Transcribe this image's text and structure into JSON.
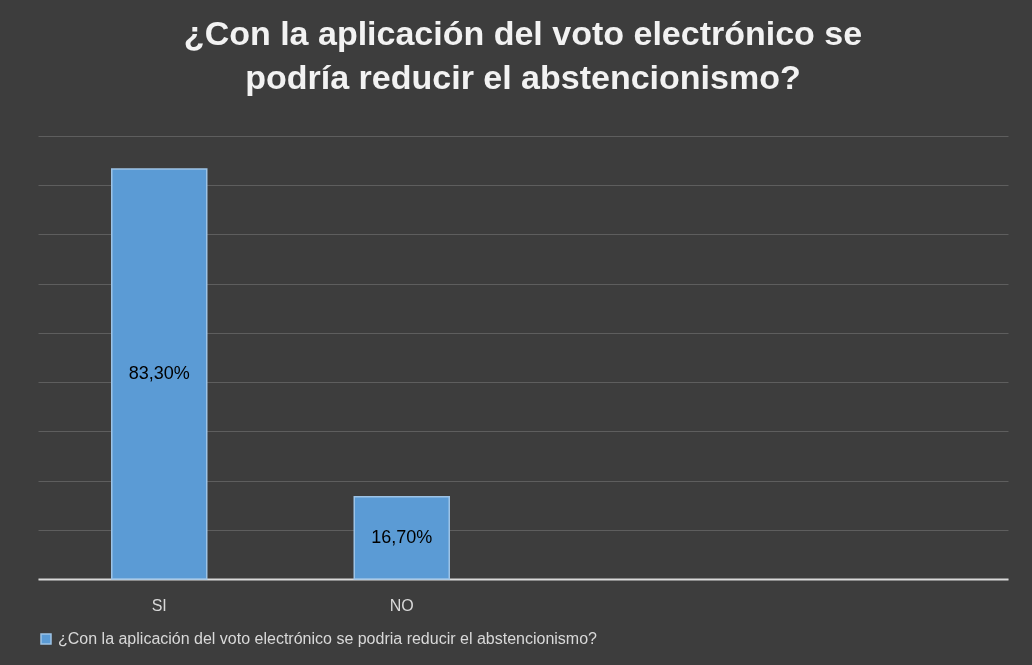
{
  "chart_data": {
    "type": "bar",
    "title": "¿Con la aplicación del voto electrónico se podría reducir el abstencionismo?",
    "categories": [
      "SI",
      "NO",
      null,
      null
    ],
    "series": [
      {
        "name": "¿Con la aplicación del voto electrónico se podria reducir el abstencionismo?",
        "color": "#5b9bd5",
        "values": [
          83.3,
          16.7,
          null,
          null
        ],
        "value_labels": [
          "83,30%",
          "16,70%",
          null,
          null
        ]
      }
    ],
    "ylim": [
      0,
      90
    ],
    "yticks": [
      {
        "value": 0,
        "label": null
      },
      {
        "value": 10,
        "label": null
      },
      {
        "value": 20,
        "label": null
      },
      {
        "value": 30,
        "label": null
      },
      {
        "value": 40,
        "label": null
      },
      {
        "value": 50,
        "label": null
      },
      {
        "value": 60,
        "label": null
      },
      {
        "value": 70,
        "label": null
      },
      {
        "value": 80,
        "label": null
      },
      {
        "value": 90,
        "label": null
      }
    ],
    "tick_labels": "x",
    "grid": true,
    "legend": "bottom"
  }
}
